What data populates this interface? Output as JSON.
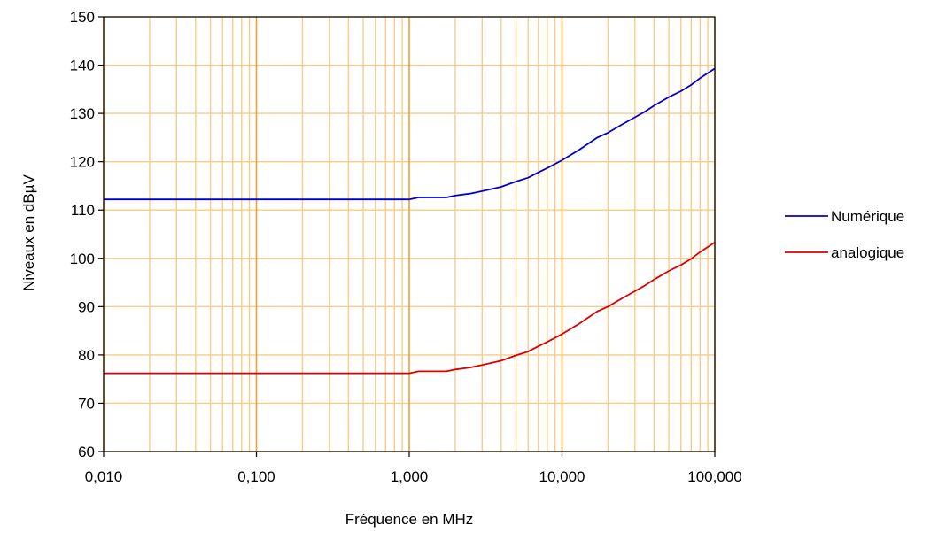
{
  "chart_data": {
    "type": "line",
    "xscale": "log",
    "xlabel": "Fréquence en MHz",
    "ylabel": "Niveaux en dBµV",
    "xlim": [
      0.01,
      100
    ],
    "ylim": [
      60,
      150
    ],
    "x_ticks": [
      0.01,
      0.1,
      1,
      10,
      100
    ],
    "x_tick_labels": [
      "0,010",
      "0,100",
      "1,000",
      "10,000",
      "100,000"
    ],
    "y_ticks": [
      60,
      70,
      80,
      90,
      100,
      110,
      120,
      130,
      140,
      150
    ],
    "y_tick_labels": [
      "60",
      "70",
      "80",
      "90",
      "100",
      "110",
      "120",
      "130",
      "140",
      "150"
    ],
    "grid": true,
    "legend_position": "right",
    "series": [
      {
        "name": "Numérique",
        "color": "#0000cc",
        "x": [
          0.01,
          1.0,
          1.15,
          1.75,
          2.0,
          2.5,
          3.0,
          4.0,
          5.0,
          6.0,
          7.0,
          8.0,
          10.0,
          13.0,
          17.0,
          20.0,
          25.0,
          30.0,
          35.0,
          40.0,
          50.0,
          60.0,
          70.0,
          80.0,
          100.0
        ],
        "values": [
          112.2,
          112.2,
          112.6,
          112.6,
          113.0,
          113.4,
          113.9,
          114.8,
          115.9,
          116.7,
          117.8,
          118.7,
          120.3,
          122.5,
          125.0,
          126.0,
          127.8,
          129.2,
          130.4,
          131.6,
          133.4,
          134.6,
          135.9,
          137.3,
          139.3
        ]
      },
      {
        "name": "analogique",
        "color": "#dd0000",
        "x": [
          0.01,
          1.0,
          1.15,
          1.75,
          2.0,
          2.5,
          3.0,
          4.0,
          5.0,
          6.0,
          7.0,
          8.0,
          10.0,
          13.0,
          17.0,
          20.0,
          25.0,
          30.0,
          35.0,
          40.0,
          50.0,
          60.0,
          70.0,
          80.0,
          100.0
        ],
        "values": [
          76.2,
          76.2,
          76.6,
          76.6,
          77.0,
          77.4,
          77.9,
          78.8,
          79.9,
          80.7,
          81.8,
          82.7,
          84.3,
          86.5,
          89.0,
          90.0,
          91.8,
          93.2,
          94.4,
          95.6,
          97.4,
          98.6,
          99.9,
          101.3,
          103.3
        ]
      }
    ]
  }
}
